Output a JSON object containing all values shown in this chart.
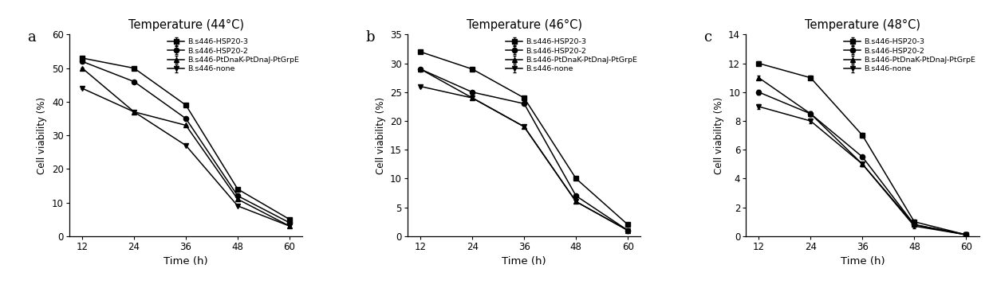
{
  "time": [
    12,
    24,
    36,
    48,
    60
  ],
  "panels": [
    {
      "title": "Temperature (44°C)",
      "label": "a",
      "ylabel": "Cell viability (%)",
      "xlabel": "Time (h)",
      "ylim": [
        0,
        60
      ],
      "yticks": [
        0,
        10,
        20,
        30,
        40,
        50,
        60
      ],
      "series": [
        {
          "label": "B.s446-HSP20-3",
          "marker": "s",
          "values": [
            53,
            50,
            39,
            14,
            5
          ]
        },
        {
          "label": "B.s446-HSP20-2",
          "marker": "o",
          "values": [
            52,
            46,
            35,
            12,
            4
          ]
        },
        {
          "label": "B.s446-PtDnaK-PtDnaJ-PtGrpE",
          "marker": "^",
          "values": [
            50,
            37,
            33,
            11,
            3
          ]
        },
        {
          "label": "B.s446-none",
          "marker": "v",
          "values": [
            44,
            37,
            27,
            9,
            3
          ]
        }
      ]
    },
    {
      "title": "Temperature (46°C)",
      "label": "b",
      "ylabel": "Cell viability (%)",
      "xlabel": "Time (h)",
      "ylim": [
        0,
        35
      ],
      "yticks": [
        0,
        5,
        10,
        15,
        20,
        25,
        30,
        35
      ],
      "series": [
        {
          "label": "B.s446-HSP20-3",
          "marker": "s",
          "values": [
            32,
            29,
            24,
            10,
            2
          ]
        },
        {
          "label": "B.s446-HSP20-2",
          "marker": "o",
          "values": [
            29,
            25,
            23,
            7,
            1
          ]
        },
        {
          "label": "B.s446-PtDnaK-PtDnaJ-PtGrpE",
          "marker": "^",
          "values": [
            29,
            24,
            19,
            6,
            1
          ]
        },
        {
          "label": "B.s446-none",
          "marker": "v",
          "values": [
            26,
            24,
            19,
            6,
            1
          ]
        }
      ]
    },
    {
      "title": "Temperature (48°C)",
      "label": "c",
      "ylabel": "Cell viability (%)",
      "xlabel": "Time (h)",
      "ylim": [
        0,
        14
      ],
      "yticks": [
        0,
        2,
        4,
        6,
        8,
        10,
        12,
        14
      ],
      "series": [
        {
          "label": "B.s446-HSP20-3",
          "marker": "s",
          "values": [
            12.0,
            11.0,
            7.0,
            1.0,
            0.1
          ]
        },
        {
          "label": "B.s446-HSP20-2",
          "marker": "o",
          "values": [
            10.0,
            8.5,
            5.5,
            0.8,
            0.1
          ]
        },
        {
          "label": "B.s446-PtDnaK-PtDnaJ-PtGrpE",
          "marker": "^",
          "values": [
            11.0,
            8.5,
            5.0,
            0.8,
            0.1
          ]
        },
        {
          "label": "B.s446-none",
          "marker": "v",
          "values": [
            9.0,
            8.0,
            5.0,
            0.7,
            0.1
          ]
        }
      ]
    }
  ],
  "line_color": "#000000",
  "markersize": 4.5,
  "linewidth": 1.1,
  "errorbar_size": 0.6,
  "figsize": [
    12.4,
    3.62
  ],
  "dpi": 100
}
